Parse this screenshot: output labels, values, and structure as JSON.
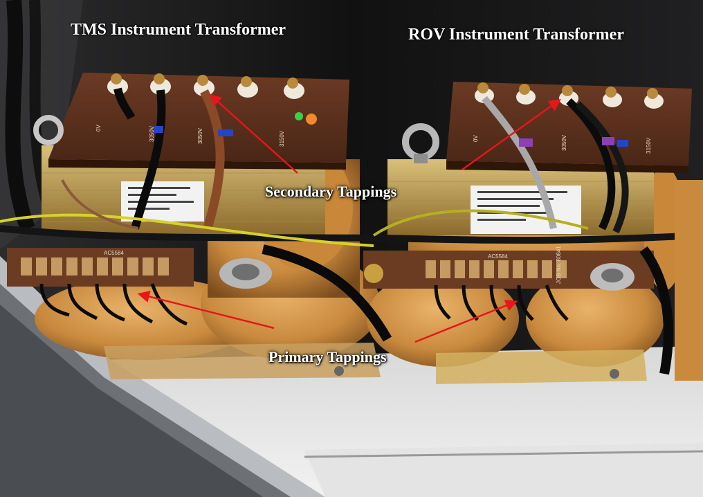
{
  "labels": {
    "tms_title": "TMS Instrument Transformer",
    "rov_title": "ROV Instrument Transformer",
    "secondary": "Secondary Tappings",
    "primary": "Primary Tappings"
  },
  "terminal_markings": {
    "tms": [
      "0V",
      "3050V",
      "3050V",
      "3150V"
    ],
    "rov": [
      "0V",
      "3050V",
      "3150V"
    ]
  },
  "board_markings": {
    "tms_board": "AC5584",
    "rov_board": "AC5584",
    "rov_job": "JOB No. 80841"
  },
  "colors": {
    "annotation_arrow": "#e8151b",
    "copper": "#c98a3e",
    "bakelite": "#5a2e1c"
  }
}
